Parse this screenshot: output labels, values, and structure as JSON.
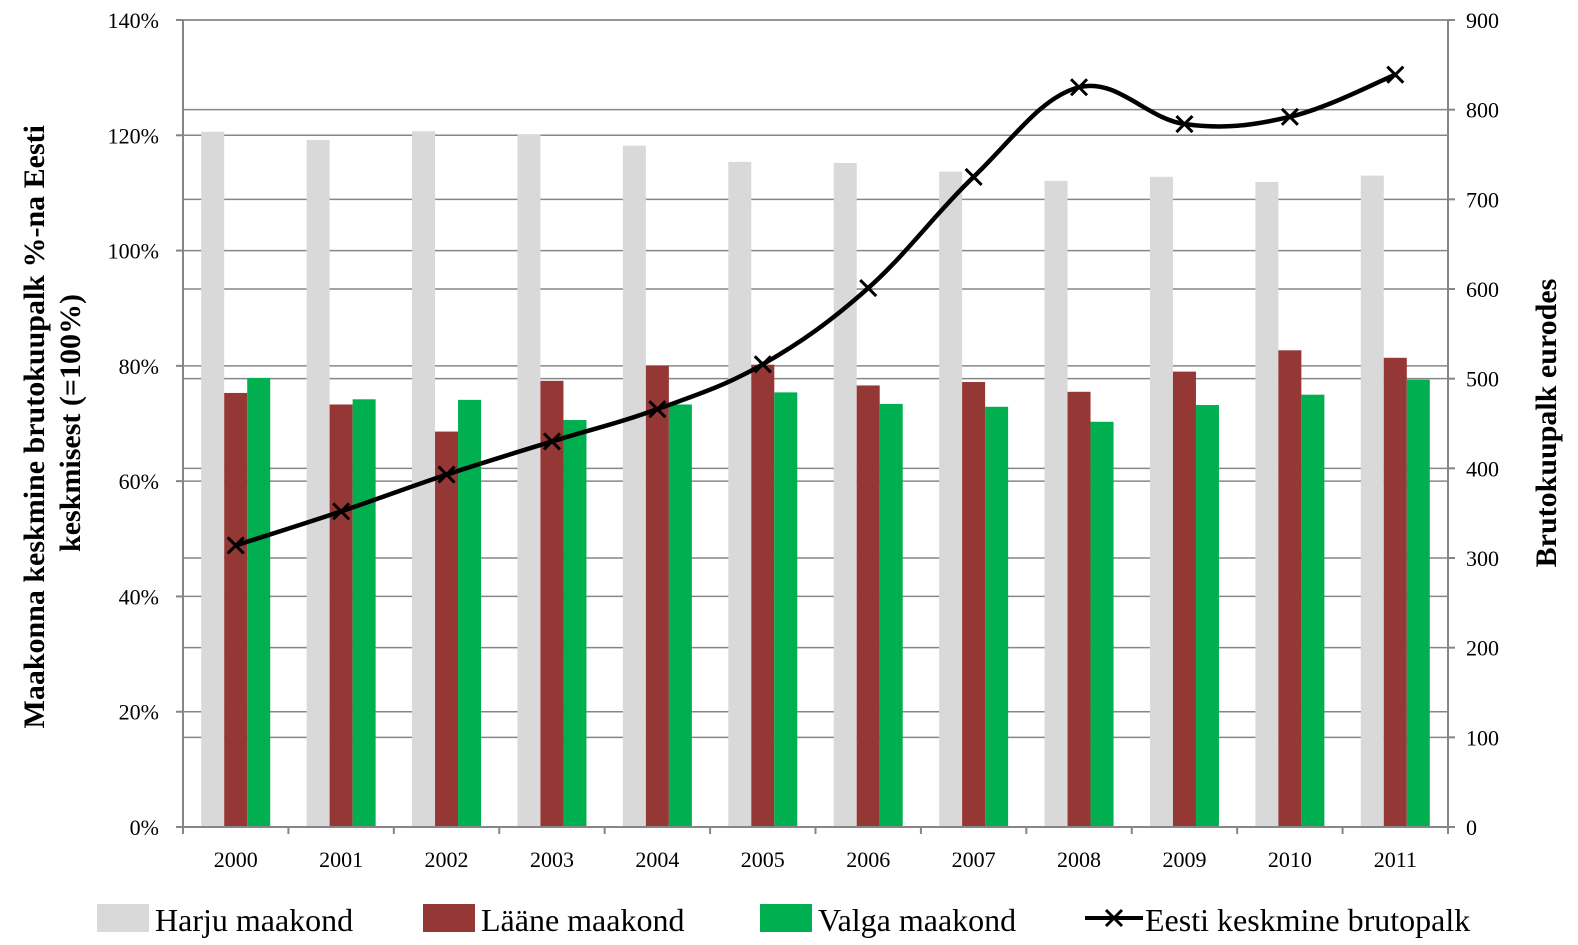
{
  "chart_data": {
    "type": "bar",
    "categories": [
      "2000",
      "2001",
      "2002",
      "2003",
      "2004",
      "2005",
      "2006",
      "2007",
      "2008",
      "2009",
      "2010",
      "2011"
    ],
    "series": [
      {
        "name": "Harju maakond",
        "axis": "left",
        "kind": "bar",
        "color": "#d9d9d9",
        "values": [
          120.6,
          119.2,
          120.7,
          120.2,
          118.2,
          115.4,
          115.2,
          113.7,
          112.1,
          112.8,
          111.9,
          113.0
        ]
      },
      {
        "name": "Lääne maakond",
        "axis": "left",
        "kind": "bar",
        "color": "#953735",
        "values": [
          75.3,
          73.3,
          68.6,
          77.4,
          80.0,
          80.2,
          76.6,
          77.2,
          75.5,
          79.0,
          82.7,
          81.4
        ]
      },
      {
        "name": "Valga maakond",
        "axis": "left",
        "kind": "bar",
        "color": "#00b050",
        "values": [
          77.9,
          74.2,
          74.1,
          70.6,
          73.3,
          75.4,
          73.4,
          72.9,
          70.3,
          73.2,
          75.0,
          77.6
        ]
      },
      {
        "name": "Eesti keskmine brutopalk",
        "axis": "right",
        "kind": "line",
        "color": "#000000",
        "values": [
          314,
          352,
          393,
          430,
          466,
          516,
          601,
          725,
          825,
          784,
          792,
          839
        ]
      }
    ],
    "y_left": {
      "label": "Maakonna keskmine brutokuupalk %-na Eesti keskmisest (=100%)",
      "label_lines": [
        "Maakonna keskmine brutokuupalk %-na Eesti",
        "keskmisest (=100%)"
      ],
      "ylim": [
        0,
        140
      ],
      "ticks": [
        0,
        20,
        40,
        60,
        80,
        100,
        120,
        140
      ],
      "tick_labels": [
        "0%",
        "20%",
        "40%",
        "60%",
        "80%",
        "100%",
        "120%",
        "140%"
      ]
    },
    "y_right": {
      "label": "Brutokuupalk eurodes",
      "ylim": [
        0,
        900
      ],
      "ticks": [
        0,
        100,
        200,
        300,
        400,
        500,
        600,
        700,
        800,
        900
      ],
      "tick_labels": [
        "0",
        "100",
        "200",
        "300",
        "400",
        "500",
        "600",
        "700",
        "800",
        "900"
      ]
    },
    "gridlines": "horizontal (both axes)",
    "legend_position": "bottom"
  }
}
